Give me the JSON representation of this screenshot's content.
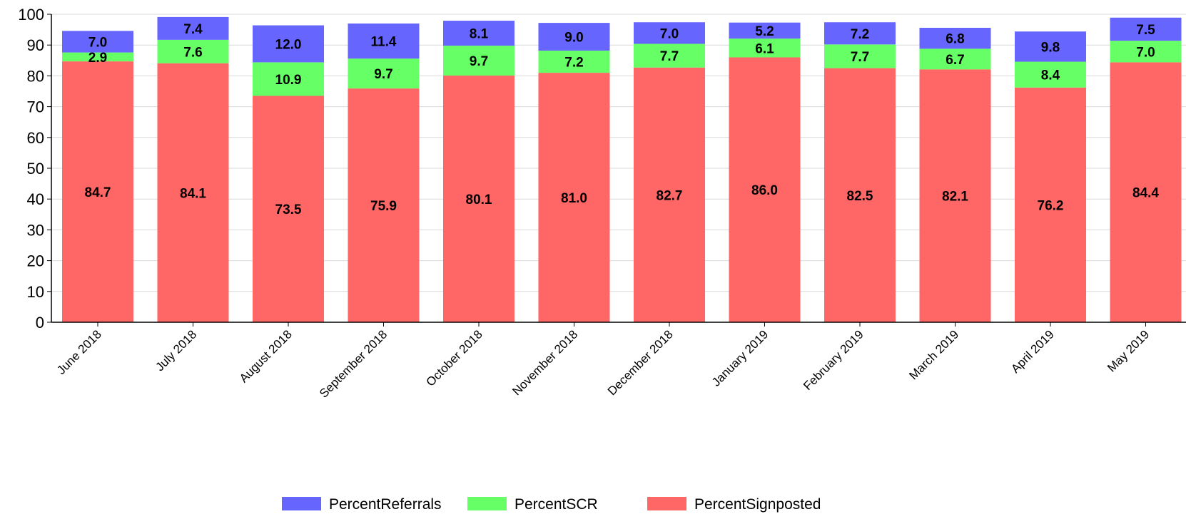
{
  "chart_data": {
    "type": "bar",
    "stacked": true,
    "categories": [
      "June 2018",
      "July 2018",
      "August 2018",
      "September 2018",
      "October 2018",
      "November 2018",
      "December 2018",
      "January 2019",
      "February 2019",
      "March 2019",
      "April 2019",
      "May 2019"
    ],
    "series": [
      {
        "name": "PercentSignposted",
        "color": "#ff6666",
        "values": [
          84.7,
          84.1,
          73.5,
          75.9,
          80.1,
          81.0,
          82.7,
          86.0,
          82.5,
          82.1,
          76.2,
          84.4
        ]
      },
      {
        "name": "PercentSCR",
        "color": "#66ff66",
        "values": [
          2.9,
          7.6,
          10.9,
          9.7,
          9.7,
          7.2,
          7.7,
          6.1,
          7.7,
          6.7,
          8.4,
          7.0
        ]
      },
      {
        "name": "PercentReferrals",
        "color": "#6666ff",
        "values": [
          7.0,
          7.4,
          12.0,
          11.4,
          8.1,
          9.0,
          7.0,
          5.2,
          7.2,
          6.8,
          9.8,
          7.5
        ]
      }
    ],
    "ylim": [
      0,
      100
    ],
    "yticks": [
      0,
      10,
      20,
      30,
      40,
      50,
      60,
      70,
      80,
      90,
      100
    ],
    "grid": true,
    "legend_placement": "bottom-center",
    "legend_order": [
      "PercentReferrals",
      "PercentSCR",
      "PercentSignposted"
    ]
  }
}
